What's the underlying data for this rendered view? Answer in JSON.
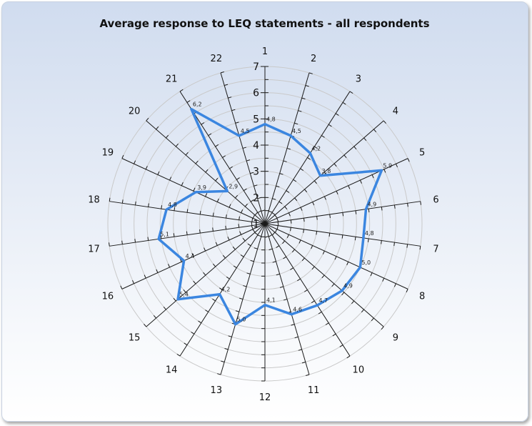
{
  "chart_data": {
    "type": "radar",
    "title": "Average response to LEQ statements - all respondents",
    "categories": [
      "1",
      "2",
      "3",
      "4",
      "5",
      "6",
      "7",
      "8",
      "9",
      "10",
      "11",
      "12",
      "13",
      "14",
      "15",
      "16",
      "17",
      "18",
      "19",
      "20",
      "21",
      "22"
    ],
    "series": [
      {
        "values": [
          4.8,
          4.5,
          4.2,
          3.8,
          5.9,
          4.9,
          4.8,
          5.0,
          4.9,
          4.7,
          4.6,
          4.1,
          5.0,
          4.2,
          5.4,
          4.4,
          5.1,
          4.8,
          3.9,
          2.9,
          6.2,
          4.5
        ],
        "labels": [
          "4,8",
          "4,5",
          "4,2",
          "3,8",
          "5,9",
          "4,9",
          "4,8",
          "5,0",
          "4,9",
          "4,7",
          "4,6",
          "4,1",
          "5,0",
          "4,2",
          "5,4",
          "4,4",
          "5,1",
          "4,8",
          "3,9",
          "2,9",
          "6,2",
          "4,5"
        ],
        "color": "#3b86e0"
      }
    ],
    "rlim": [
      1,
      7
    ],
    "rticks": [
      "1",
      "2",
      "3",
      "4",
      "5",
      "6",
      "7"
    ],
    "grid": true
  }
}
